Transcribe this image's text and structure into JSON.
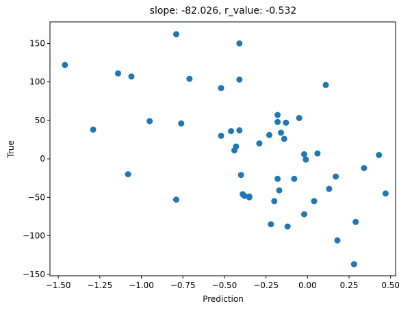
{
  "chart_data": {
    "type": "scatter",
    "title": "slope: -82.026, r_value: -0.532",
    "xlabel": "Prediction",
    "ylabel": "True",
    "xlim": [
      -1.55,
      0.53
    ],
    "ylim": [
      -152,
      178
    ],
    "xticks": [
      -1.5,
      -1.25,
      -1.0,
      -0.75,
      -0.5,
      -0.25,
      0.0,
      0.25,
      0.5
    ],
    "xtick_labels": [
      "−1.50",
      "−1.25",
      "−1.00",
      "−0.75",
      "−0.50",
      "−0.25",
      "0.00",
      "0.25",
      "0.50"
    ],
    "yticks": [
      -150,
      -100,
      -50,
      0,
      50,
      100,
      150
    ],
    "ytick_labels": [
      "−150",
      "−100",
      "−50",
      "0",
      "50",
      "100",
      "150"
    ],
    "grid": false,
    "marker_color": "#1f77b4",
    "x": [
      -1.46,
      -1.29,
      -1.14,
      -1.06,
      -1.08,
      -0.95,
      -0.79,
      -0.79,
      -0.76,
      -0.71,
      -0.52,
      -0.52,
      -0.46,
      -0.44,
      -0.43,
      -0.41,
      -0.41,
      -0.41,
      -0.4,
      -0.39,
      -0.38,
      -0.35,
      -0.35,
      -0.29,
      -0.23,
      -0.22,
      -0.2,
      -0.18,
      -0.18,
      -0.18,
      -0.17,
      -0.16,
      -0.14,
      -0.13,
      -0.12,
      -0.08,
      -0.05,
      -0.02,
      -0.02,
      -0.01,
      0.04,
      0.06,
      0.11,
      0.13,
      0.17,
      0.18,
      0.28,
      0.29,
      0.34,
      0.43,
      0.47
    ],
    "y": [
      122,
      38,
      111,
      107,
      -20,
      49,
      162,
      -53,
      46,
      104,
      92,
      30,
      36,
      11,
      16,
      150,
      103,
      37,
      -21,
      -46,
      -48,
      -49,
      -50,
      20,
      31,
      -85,
      -55,
      57,
      48,
      -26,
      -41,
      34,
      26,
      47,
      -88,
      -26,
      53,
      6,
      -72,
      -1,
      -55,
      7,
      96,
      -39,
      -23,
      -106,
      -137,
      -82,
      -12,
      5,
      -45
    ]
  }
}
